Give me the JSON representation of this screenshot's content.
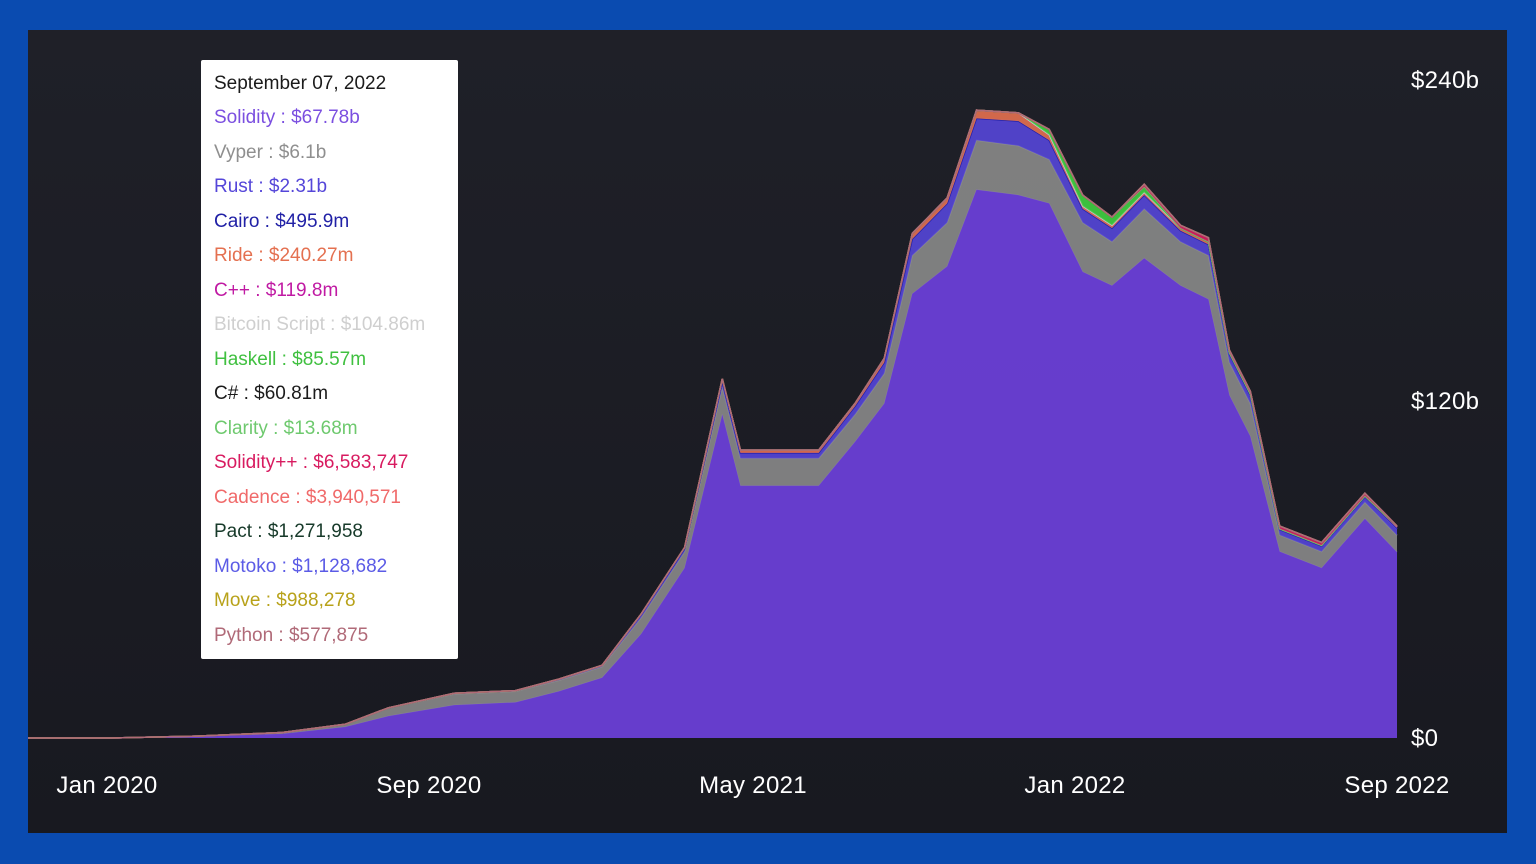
{
  "chart_data": {
    "type": "area",
    "stacked": true,
    "x_ticks": [
      "Jan 2020",
      "Sep 2020",
      "May 2021",
      "Jan 2022",
      "Sep 2022"
    ],
    "y_ticks": [
      "$0",
      "$120b",
      "$240b"
    ],
    "ylim": [
      0,
      240
    ],
    "grid": false,
    "x": [
      "2020-01-01",
      "2020-03-01",
      "2020-05-01",
      "2020-07-01",
      "2020-08-15",
      "2020-09-15",
      "2020-11-01",
      "2020-12-15",
      "2021-01-15",
      "2021-02-15",
      "2021-03-15",
      "2021-04-15",
      "2021-05-12",
      "2021-05-25",
      "2021-06-20",
      "2021-07-20",
      "2021-08-15",
      "2021-09-05",
      "2021-09-25",
      "2021-10-20",
      "2021-11-10",
      "2021-12-10",
      "2022-01-01",
      "2022-01-25",
      "2022-02-15",
      "2022-03-10",
      "2022-04-05",
      "2022-04-25",
      "2022-05-10",
      "2022-05-25",
      "2022-06-15",
      "2022-07-15",
      "2022-08-15",
      "2022-09-07"
    ],
    "series": [
      {
        "name": "Solidity",
        "color": "#6a3fd6",
        "values": [
          0,
          0,
          0.5,
          1.5,
          4,
          8,
          12,
          13,
          17,
          22,
          38,
          62,
          118,
          92,
          92,
          92,
          108,
          122,
          162,
          172,
          200,
          198,
          195,
          170,
          165,
          175,
          165,
          160,
          125,
          110,
          68,
          62,
          80,
          67.78
        ]
      },
      {
        "name": "Vyper",
        "color": "#8a8a8a",
        "values": [
          0,
          0,
          0.2,
          0.5,
          1,
          3,
          4,
          4,
          4,
          4,
          6,
          6,
          10,
          10,
          10,
          10,
          10,
          11,
          14,
          16,
          18,
          18,
          16,
          18,
          16,
          18,
          16,
          16,
          12,
          12,
          6,
          6,
          6,
          6.1
        ]
      },
      {
        "name": "Rust",
        "color": "#5546d9",
        "values": [
          0,
          0,
          0,
          0,
          0,
          0,
          0.3,
          0.3,
          0.5,
          0.5,
          1,
          1,
          2,
          2,
          2,
          2,
          3,
          4,
          6,
          7,
          8,
          9,
          7,
          5,
          5,
          5,
          4,
          4,
          3,
          3,
          2,
          2,
          2,
          2.31
        ]
      },
      {
        "name": "Cairo",
        "color": "#2121a6",
        "values": [
          0,
          0,
          0,
          0,
          0,
          0,
          0,
          0,
          0,
          0,
          0,
          0,
          0,
          0,
          0,
          0,
          0,
          0,
          0,
          0,
          0,
          0,
          0,
          0,
          0,
          0,
          0,
          0,
          0,
          0,
          0,
          0,
          0,
          0.4959
        ]
      },
      {
        "name": "Ride",
        "color": "#e47050",
        "values": [
          0,
          0,
          0,
          0,
          0,
          0,
          0,
          0,
          0,
          0,
          0.3,
          0.5,
          1,
          1,
          1,
          1,
          1,
          1.5,
          2,
          2,
          3,
          3,
          2,
          1,
          1,
          1,
          1,
          1,
          0.5,
          0.5,
          0.3,
          0.3,
          0.3,
          0.24027
        ]
      },
      {
        "name": "C++",
        "color": "#c01aa3",
        "values": [
          0,
          0,
          0,
          0,
          0,
          0,
          0,
          0,
          0,
          0,
          0,
          0,
          0,
          0,
          0,
          0,
          0,
          0,
          0,
          0,
          0,
          0,
          0,
          0,
          0,
          0,
          0,
          0,
          0,
          0,
          0,
          0,
          0,
          0.1198
        ]
      },
      {
        "name": "Bitcoin Script",
        "color": "#c8c8c8",
        "values": [
          0,
          0,
          0,
          0,
          0,
          0,
          0,
          0,
          0,
          0,
          0,
          0,
          0,
          0,
          0,
          0,
          0,
          0,
          0,
          0,
          0,
          0,
          0,
          0,
          0,
          0,
          0,
          0,
          0,
          0,
          0,
          0,
          0,
          0.10486
        ]
      },
      {
        "name": "Haskell",
        "color": "#40d040",
        "values": [
          0,
          0,
          0,
          0,
          0,
          0,
          0,
          0,
          0,
          0,
          0,
          0,
          0,
          0,
          0,
          0,
          0,
          0,
          0,
          0,
          0,
          0,
          2,
          4,
          3,
          2,
          0,
          0,
          0,
          0,
          0,
          0,
          0,
          0.08557
        ]
      },
      {
        "name": "C#",
        "color": "#1b1b1b",
        "values": [
          0,
          0,
          0,
          0,
          0,
          0,
          0,
          0,
          0,
          0,
          0,
          0,
          0,
          0,
          0,
          0,
          0,
          0,
          0,
          0,
          0,
          0,
          0,
          0,
          0,
          0,
          0,
          0,
          0,
          0,
          0,
          0,
          0,
          0.06081
        ]
      },
      {
        "name": "Clarity",
        "color": "#6ec96e",
        "values": [
          0,
          0,
          0,
          0,
          0,
          0,
          0,
          0,
          0,
          0,
          0,
          0,
          0,
          0,
          0,
          0,
          0,
          0,
          0,
          0,
          0,
          0,
          0,
          0,
          0,
          0,
          0,
          0,
          0,
          0,
          0,
          0,
          0,
          0.01368
        ]
      },
      {
        "name": "Solidity++",
        "color": "#d81b60",
        "values": [
          0,
          0,
          0,
          0,
          0,
          0,
          0,
          0,
          0,
          0,
          0,
          0,
          0,
          0,
          0,
          0,
          0,
          0,
          0,
          0,
          0,
          0,
          0,
          0,
          0,
          1,
          1,
          1.5,
          1,
          1,
          1,
          1,
          1,
          0.006583747
        ]
      },
      {
        "name": "Cadence",
        "color": "#f06a6a",
        "values": [
          0,
          0,
          0,
          0,
          0,
          0,
          0,
          0,
          0,
          0,
          0,
          0,
          0,
          0,
          0,
          0,
          0,
          0,
          0,
          0,
          0,
          0,
          0,
          0,
          0,
          0,
          0,
          0,
          0,
          0,
          0,
          0,
          0,
          0.003940571
        ]
      },
      {
        "name": "Pact",
        "color": "#173a2a",
        "values": [
          0,
          0,
          0,
          0,
          0,
          0,
          0,
          0,
          0,
          0,
          0,
          0,
          0,
          0,
          0,
          0,
          0,
          0,
          0,
          0,
          0,
          0,
          0,
          0,
          0,
          0,
          0,
          0,
          0,
          0,
          0,
          0,
          0,
          0.001271958
        ]
      },
      {
        "name": "Motoko",
        "color": "#5b5be6",
        "values": [
          0,
          0,
          0,
          0,
          0,
          0,
          0,
          0,
          0,
          0,
          0,
          0,
          0,
          0,
          0,
          0,
          0,
          0,
          0,
          0,
          0,
          0,
          0,
          0,
          0,
          0,
          0,
          0,
          0,
          0,
          0,
          0,
          0,
          0.001128682
        ]
      },
      {
        "name": "Move",
        "color": "#b8a21a",
        "values": [
          0,
          0,
          0,
          0,
          0,
          0,
          0,
          0,
          0,
          0,
          0,
          0,
          0,
          0,
          0,
          0,
          0,
          0,
          0,
          0,
          0,
          0,
          0,
          0,
          0,
          0,
          0,
          0,
          0,
          0,
          0,
          0,
          0,
          0.000988278
        ]
      },
      {
        "name": "Python",
        "color": "#b06a78",
        "values": [
          0,
          0,
          0,
          0,
          0,
          0,
          0,
          0,
          0,
          0,
          0,
          0,
          0,
          0,
          0,
          0,
          0,
          0,
          0,
          0,
          0,
          0,
          0,
          0,
          0,
          0,
          0,
          0,
          0,
          0,
          0,
          0,
          0,
          0.000577875
        ]
      }
    ],
    "tooltip": {
      "date": "September 07, 2022",
      "items": [
        {
          "label": "Solidity : $67.78b",
          "color": "#7b4fe0"
        },
        {
          "label": "Vyper : $6.1b",
          "color": "#8f8f8f"
        },
        {
          "label": "Rust : $2.31b",
          "color": "#5546d9"
        },
        {
          "label": "Cairo : $495.9m",
          "color": "#2121a6"
        },
        {
          "label": "Ride : $240.27m",
          "color": "#e47050"
        },
        {
          "label": "C++ : $119.8m",
          "color": "#c01aa3"
        },
        {
          "label": "Bitcoin Script : $104.86m",
          "color": "#cfcfcf"
        },
        {
          "label": "Haskell : $85.57m",
          "color": "#40c040"
        },
        {
          "label": "C# : $60.81m",
          "color": "#1b1b1b"
        },
        {
          "label": "Clarity : $13.68m",
          "color": "#6ec96e"
        },
        {
          "label": "Solidity++ : $6,583,747",
          "color": "#d81b60"
        },
        {
          "label": "Cadence : $3,940,571",
          "color": "#f06a6a"
        },
        {
          "label": "Pact : $1,271,958",
          "color": "#173a2a"
        },
        {
          "label": "Motoko : $1,128,682",
          "color": "#5b5be6"
        },
        {
          "label": "Move : $988,278",
          "color": "#b8a21a"
        },
        {
          "label": "Python : $577,875",
          "color": "#b06a78"
        }
      ]
    }
  }
}
